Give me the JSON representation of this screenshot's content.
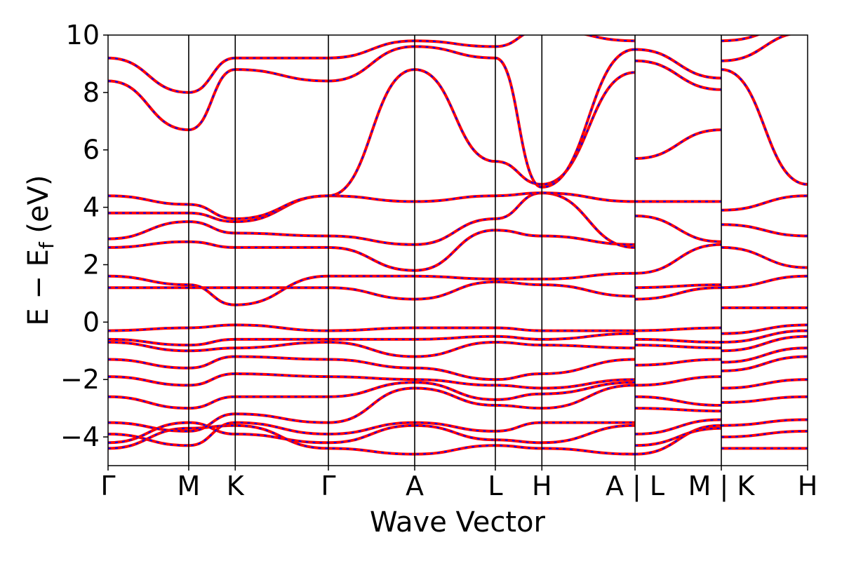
{
  "chart_data": {
    "type": "line",
    "title": "",
    "xlabel": "Wave Vector",
    "ylabel_main": "E − E",
    "ylabel_sub": "f",
    "ylabel_unit": " (eV)",
    "ylim": [
      -5,
      10
    ],
    "yticks": [
      -4,
      -2,
      0,
      2,
      4,
      6,
      8,
      10
    ],
    "ytick_labels": [
      "−4",
      "−2",
      "0",
      "2",
      "4",
      "6",
      "8",
      "10"
    ],
    "x_path_segments": [
      {
        "from": "Γ",
        "to": "M",
        "length": 1.0
      },
      {
        "from": "M",
        "to": "K",
        "length": 0.577
      },
      {
        "from": "K",
        "to": "Γ",
        "length": 1.155
      },
      {
        "from": "Γ",
        "to": "A",
        "length": 1.07
      },
      {
        "from": "A",
        "to": "L",
        "length": 1.0
      },
      {
        "from": "L",
        "to": "H",
        "length": 0.577
      },
      {
        "from": "H",
        "to": "A",
        "length": 1.155
      },
      {
        "from": "L",
        "to": "M",
        "length": 1.07
      },
      {
        "from": "K",
        "to": "H",
        "length": 1.07
      }
    ],
    "x_tick_labels": [
      "Γ",
      "M",
      "K",
      "Γ",
      "A",
      "L",
      "H",
      "A | L",
      "M | K",
      "H"
    ],
    "grid": false,
    "legend": "none",
    "series": [
      {
        "color": "#ff0000",
        "style": "solid"
      },
      {
        "color": "#0000ff",
        "style": "dashed"
      }
    ],
    "bands": [
      {
        "nodes": [
          [
            0,
            -4.4
          ],
          [
            1,
            -3.7
          ],
          [
            1.577,
            -3.6
          ],
          [
            2.732,
            -4.4
          ],
          [
            3.802,
            -4.6
          ],
          [
            4.802,
            -4.3
          ],
          [
            5.379,
            -4.4
          ],
          [
            6.534,
            -4.6
          ],
          [
            6.534,
            -4.6
          ],
          [
            7.604,
            -3.6
          ],
          [
            7.604,
            -4.4
          ],
          [
            8.674,
            -4.4
          ]
        ]
      },
      {
        "nodes": [
          [
            0,
            -4.2
          ],
          [
            1,
            -3.5
          ],
          [
            1.577,
            -3.9
          ],
          [
            2.732,
            -4.2
          ],
          [
            3.802,
            -3.6
          ],
          [
            4.802,
            -4.1
          ],
          [
            5.379,
            -4.2
          ],
          [
            6.534,
            -3.6
          ],
          [
            6.534,
            -4.3
          ],
          [
            7.604,
            -3.7
          ],
          [
            7.604,
            -4.0
          ],
          [
            8.674,
            -3.8
          ]
        ]
      },
      {
        "nodes": [
          [
            0,
            -3.9
          ],
          [
            1,
            -4.3
          ],
          [
            1.577,
            -3.5
          ],
          [
            2.732,
            -3.9
          ],
          [
            3.802,
            -3.5
          ],
          [
            4.802,
            -3.8
          ],
          [
            5.379,
            -3.5
          ],
          [
            6.534,
            -3.5
          ],
          [
            6.534,
            -3.9
          ],
          [
            7.604,
            -3.4
          ],
          [
            7.604,
            -3.6
          ],
          [
            8.674,
            -3.4
          ]
        ]
      },
      {
        "nodes": [
          [
            0,
            -3.5
          ],
          [
            1,
            -3.8
          ],
          [
            1.577,
            -3.2
          ],
          [
            2.732,
            -3.5
          ],
          [
            3.802,
            -2.3
          ],
          [
            4.802,
            -2.9
          ],
          [
            5.379,
            -3.0
          ],
          [
            6.534,
            -2.2
          ],
          [
            6.534,
            -3.0
          ],
          [
            7.604,
            -3.1
          ],
          [
            7.604,
            -2.8
          ],
          [
            8.674,
            -2.6
          ]
        ]
      },
      {
        "nodes": [
          [
            0,
            -2.6
          ],
          [
            1,
            -3.0
          ],
          [
            1.577,
            -2.6
          ],
          [
            2.732,
            -2.6
          ],
          [
            3.802,
            -2.1
          ],
          [
            4.802,
            -2.7
          ],
          [
            5.379,
            -2.5
          ],
          [
            6.534,
            -2.1
          ],
          [
            6.534,
            -2.6
          ],
          [
            7.604,
            -2.9
          ],
          [
            7.604,
            -2.3
          ],
          [
            8.674,
            -2.0
          ]
        ]
      },
      {
        "nodes": [
          [
            0,
            -1.9
          ],
          [
            1,
            -2.2
          ],
          [
            1.577,
            -1.8
          ],
          [
            2.732,
            -1.9
          ],
          [
            3.802,
            -2.0
          ],
          [
            4.802,
            -2.2
          ],
          [
            5.379,
            -2.3
          ],
          [
            6.534,
            -2.0
          ],
          [
            6.534,
            -2.2
          ],
          [
            7.604,
            -1.9
          ],
          [
            7.604,
            -1.7
          ],
          [
            8.674,
            -1.2
          ]
        ]
      },
      {
        "nodes": [
          [
            0,
            -1.3
          ],
          [
            1,
            -1.6
          ],
          [
            1.577,
            -1.2
          ],
          [
            2.732,
            -1.3
          ],
          [
            3.802,
            -1.6
          ],
          [
            4.802,
            -2.0
          ],
          [
            5.379,
            -1.8
          ],
          [
            6.534,
            -1.3
          ],
          [
            6.534,
            -1.5
          ],
          [
            7.604,
            -1.3
          ],
          [
            7.604,
            -1.4
          ],
          [
            8.674,
            -0.9
          ]
        ]
      },
      {
        "nodes": [
          [
            0,
            -0.7
          ],
          [
            1,
            -1.0
          ],
          [
            1.577,
            -0.9
          ],
          [
            2.732,
            -0.7
          ],
          [
            3.802,
            -1.2
          ],
          [
            4.802,
            -0.7
          ],
          [
            5.379,
            -0.8
          ],
          [
            6.534,
            -0.9
          ],
          [
            6.534,
            -0.8
          ],
          [
            7.604,
            -0.9
          ],
          [
            7.604,
            -1.0
          ],
          [
            8.674,
            -0.5
          ]
        ]
      },
      {
        "nodes": [
          [
            0,
            -0.6
          ],
          [
            1,
            -0.8
          ],
          [
            1.577,
            -0.6
          ],
          [
            2.732,
            -0.6
          ],
          [
            3.802,
            -0.6
          ],
          [
            4.802,
            -0.5
          ],
          [
            5.379,
            -0.6
          ],
          [
            6.534,
            -0.4
          ],
          [
            6.534,
            -0.6
          ],
          [
            7.604,
            -0.7
          ],
          [
            7.604,
            -0.7
          ],
          [
            8.674,
            -0.3
          ]
        ]
      },
      {
        "nodes": [
          [
            0,
            -0.3
          ],
          [
            1,
            -0.2
          ],
          [
            1.577,
            -0.1
          ],
          [
            2.732,
            -0.3
          ],
          [
            3.802,
            -0.2
          ],
          [
            4.802,
            -0.2
          ],
          [
            5.379,
            -0.3
          ],
          [
            6.534,
            -0.3
          ],
          [
            6.534,
            -0.3
          ],
          [
            7.604,
            -0.2
          ],
          [
            7.604,
            -0.4
          ],
          [
            8.674,
            -0.1
          ]
        ]
      },
      {
        "nodes": [
          [
            0,
            1.2
          ],
          [
            1,
            1.2
          ],
          [
            1.577,
            1.2
          ],
          [
            2.732,
            1.2
          ],
          [
            3.802,
            0.8
          ],
          [
            4.802,
            1.4
          ],
          [
            5.379,
            1.3
          ],
          [
            6.534,
            0.9
          ],
          [
            6.534,
            0.8
          ],
          [
            7.604,
            1.2
          ],
          [
            7.604,
            0.5
          ],
          [
            8.674,
            0.5
          ]
        ]
      },
      {
        "nodes": [
          [
            0,
            1.6
          ],
          [
            1,
            1.3
          ],
          [
            1.577,
            0.6
          ],
          [
            2.732,
            1.6
          ],
          [
            3.802,
            1.6
          ],
          [
            4.802,
            1.5
          ],
          [
            5.379,
            1.5
          ],
          [
            6.534,
            1.7
          ],
          [
            6.534,
            1.2
          ],
          [
            7.604,
            1.3
          ],
          [
            7.604,
            1.2
          ],
          [
            8.674,
            1.6
          ]
        ]
      },
      {
        "nodes": [
          [
            0,
            2.6
          ],
          [
            1,
            2.8
          ],
          [
            1.577,
            2.6
          ],
          [
            2.732,
            2.6
          ],
          [
            3.802,
            1.8
          ],
          [
            4.802,
            3.2
          ],
          [
            5.379,
            3.0
          ],
          [
            6.534,
            2.7
          ],
          [
            6.534,
            1.7
          ],
          [
            7.604,
            2.7
          ],
          [
            7.604,
            2.6
          ],
          [
            8.674,
            1.9
          ]
        ]
      },
      {
        "nodes": [
          [
            0,
            2.9
          ],
          [
            1,
            3.5
          ],
          [
            1.577,
            3.1
          ],
          [
            2.732,
            3.0
          ],
          [
            3.802,
            2.7
          ],
          [
            4.802,
            3.6
          ],
          [
            5.379,
            4.5
          ],
          [
            6.534,
            2.6
          ],
          [
            6.534,
            3.7
          ],
          [
            7.604,
            2.8
          ],
          [
            7.604,
            3.4
          ],
          [
            8.674,
            3.0
          ]
        ]
      },
      {
        "nodes": [
          [
            0,
            3.8
          ],
          [
            1,
            3.8
          ],
          [
            1.577,
            3.5
          ],
          [
            2.732,
            4.4
          ],
          [
            3.802,
            4.2
          ],
          [
            4.802,
            4.4
          ],
          [
            5.379,
            4.5
          ],
          [
            6.534,
            4.2
          ],
          [
            6.534,
            4.2
          ],
          [
            7.604,
            4.2
          ],
          [
            7.604,
            3.9
          ],
          [
            8.674,
            4.4
          ]
        ]
      },
      {
        "nodes": [
          [
            0,
            4.4
          ],
          [
            1,
            4.1
          ],
          [
            1.577,
            3.6
          ],
          [
            2.732,
            4.4
          ],
          [
            3.802,
            8.8
          ],
          [
            4.802,
            5.6
          ],
          [
            5.379,
            4.8
          ],
          [
            6.534,
            8.7
          ],
          [
            6.534,
            5.7
          ],
          [
            7.604,
            6.7
          ],
          [
            7.604,
            8.8
          ],
          [
            8.674,
            4.8
          ]
        ]
      },
      {
        "nodes": [
          [
            0,
            8.4
          ],
          [
            1,
            6.7
          ],
          [
            1.577,
            8.8
          ],
          [
            2.732,
            8.4
          ],
          [
            3.802,
            9.6
          ],
          [
            4.802,
            9.2
          ],
          [
            5.379,
            4.7
          ],
          [
            6.534,
            9.5
          ],
          [
            6.534,
            9.1
          ],
          [
            7.604,
            8.1
          ],
          [
            7.604,
            9.1
          ],
          [
            8.674,
            10.1
          ]
        ]
      },
      {
        "nodes": [
          [
            0,
            9.2
          ],
          [
            1,
            8.0
          ],
          [
            1.577,
            9.2
          ],
          [
            2.732,
            9.2
          ],
          [
            3.802,
            9.8
          ],
          [
            4.802,
            9.6
          ],
          [
            5.379,
            10.2
          ],
          [
            6.534,
            9.8
          ],
          [
            6.534,
            9.5
          ],
          [
            7.604,
            8.5
          ],
          [
            7.604,
            9.8
          ],
          [
            8.674,
            10.4
          ]
        ]
      }
    ]
  }
}
